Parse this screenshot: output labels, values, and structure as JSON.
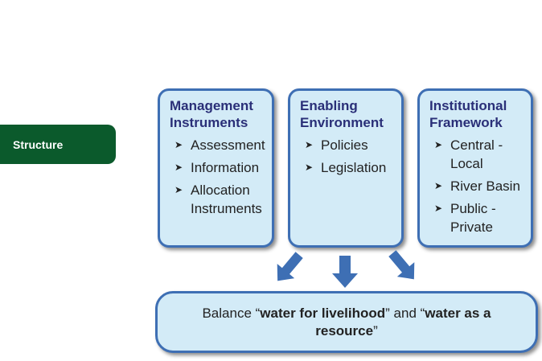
{
  "section_tag": "Structure",
  "boxes": [
    {
      "title": "Management\nInstruments",
      "items": [
        "Assessment",
        "Information",
        "Allocation\nInstruments"
      ]
    },
    {
      "title": "Enabling\nEnvironment",
      "items": [
        "Policies",
        "Legislation"
      ]
    },
    {
      "title": "Institutional\nFramework",
      "items": [
        "Central -\nLocal",
        "River Basin",
        "Public -\nPrivate"
      ]
    }
  ],
  "bottom": {
    "prefix": "Balance “",
    "bold1": "water for livelihood",
    "middle": "” and “",
    "bold2": "water as a resource",
    "suffix": "”"
  },
  "colors": {
    "accent_green": "#0b5a2c",
    "box_fill": "#d3ebf7",
    "box_border": "#3e6fb4",
    "title_navy": "#2a2f78"
  }
}
